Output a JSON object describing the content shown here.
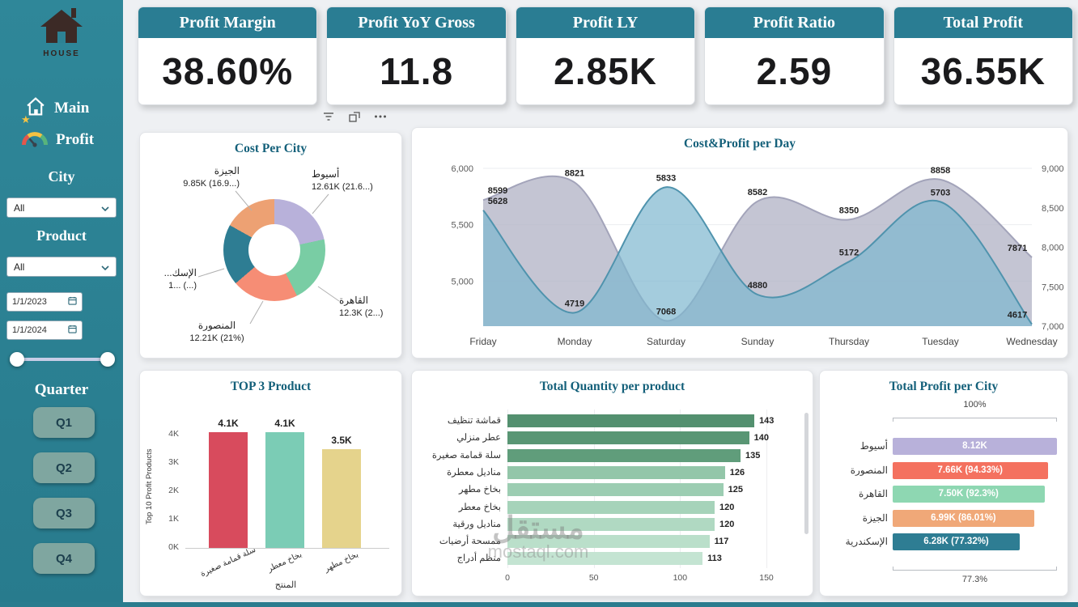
{
  "sidebar": {
    "brand": "HOUSE",
    "nav": [
      {
        "label": "Main",
        "icon": "home-icon"
      },
      {
        "label": "Profit",
        "icon": "gauge-icon"
      }
    ],
    "filters": {
      "city_label": "City",
      "city_value": "All",
      "product_label": "Product",
      "product_value": "All",
      "dropdown_icon": "chevron-down-icon",
      "date_icon": "calendar-icon",
      "date_from": "1/1/2023",
      "date_to": "1/1/2024",
      "quarter_label": "Quarter",
      "quarters": [
        "Q1",
        "Q2",
        "Q3",
        "Q4"
      ]
    }
  },
  "kpis": [
    {
      "title": "Profit Margin",
      "value": "38.60%"
    },
    {
      "title": "Profit YoY Gross",
      "value": "11.8"
    },
    {
      "title": "Profit LY",
      "value": "2.85K"
    },
    {
      "title": "Profit Ratio",
      "value": "2.59"
    },
    {
      "title": "Total Profit",
      "value": "36.55K"
    }
  ],
  "toolbar": {
    "icons": [
      "filter-icon",
      "focus-mode-icon",
      "more-options-icon"
    ]
  },
  "watermark": {
    "line1": "مستقل",
    "line2": "mostaql.com"
  },
  "colors": {
    "sidebar": "#2d8294",
    "kpi_header": "#2a7d93",
    "title_text": "#14607a"
  },
  "chart_data": [
    {
      "type": "pie",
      "title": "Cost Per City",
      "donut": true,
      "slices": [
        {
          "label": "أسيوط",
          "display_label": "أسيوط",
          "value_text": "12.61K (21.6...)",
          "pct": 21.6,
          "color": "#b8b1da"
        },
        {
          "label": "القاهرة",
          "display_label": "القاهرة",
          "value_text": "12.3K (2...)",
          "pct": 21.1,
          "color": "#79cda4"
        },
        {
          "label": "المنصورة",
          "display_label": "المنصورة",
          "value_text": "12.21K (21%)",
          "pct": 21.0,
          "color": "#f68d75"
        },
        {
          "label": "الإسكندرية",
          "display_label": "الإسك...",
          "value_text": "1... (...)",
          "pct": 19.4,
          "color": "#2e7d93"
        },
        {
          "label": "الجيزة",
          "display_label": "الجيزة",
          "value_text": "9.85K (16.9...)",
          "pct": 16.9,
          "color": "#eda173"
        }
      ]
    },
    {
      "type": "area",
      "title": "Cost&Profit per Day",
      "categories": [
        "Friday",
        "Monday",
        "Saturday",
        "Sunday",
        "Thursday",
        "Tuesday",
        "Wednesday"
      ],
      "series": [
        {
          "name": "cost",
          "axis": "right",
          "values": [
            8599,
            8821,
            7068,
            8582,
            8350,
            8858,
            7871
          ],
          "fill": "rgba(176,177,196,0.75)",
          "stroke": "#a3a4ba"
        },
        {
          "name": "profit",
          "axis": "left",
          "values": [
            5628,
            4719,
            5833,
            4880,
            5172,
            5703,
            4617
          ],
          "fill": "rgba(125,182,207,0.70)",
          "stroke": "#4f93ad"
        }
      ],
      "left_axis": {
        "min": 4600,
        "max": 6000,
        "ticks": [
          "6,000",
          "5,500",
          "5,000"
        ],
        "tick_values": [
          6000,
          5500,
          5000
        ]
      },
      "right_axis": {
        "min": 7000,
        "max": 9000,
        "ticks": [
          "9,000",
          "8,500",
          "8,000",
          "7,500",
          "7,000"
        ],
        "tick_values": [
          9000,
          8500,
          8000,
          7500,
          7000
        ]
      },
      "legend": "off",
      "grid": "light-horizontal"
    },
    {
      "type": "bar",
      "title": "TOP 3 Product",
      "ylabel": "Top 10 Profit Products",
      "xlabel": "المنتج",
      "categories": [
        "سلة قمامة صغيرة",
        "بخاخ معطر",
        "بخاخ مطهر"
      ],
      "values": [
        4100,
        4100,
        3500
      ],
      "value_labels": [
        "4.1K",
        "4.1K",
        "3.5K"
      ],
      "colors": [
        "#d84b5d",
        "#7bccb5",
        "#e5d38c"
      ],
      "yticks": [
        "0K",
        "1K",
        "2K",
        "3K",
        "4K"
      ],
      "ytick_values": [
        0,
        1000,
        2000,
        3000,
        4000
      ],
      "ylim": [
        0,
        4300
      ]
    },
    {
      "type": "bar",
      "orientation": "horizontal",
      "title": "Total Quantity per product",
      "categories": [
        "قماشة تنظيف",
        "عطر منزلي",
        "سلة قمامة صغيرة",
        "مناديل معطرة",
        "بخاخ مطهر",
        "بخاخ معطر",
        "مناديل ورقية",
        "ممسحة أرضيات",
        "منظم أدراج"
      ],
      "values": [
        143,
        140,
        135,
        126,
        125,
        120,
        120,
        117,
        113
      ],
      "colors": [
        "#53906f",
        "#599674",
        "#609d7b",
        "#93c6a9",
        "#9ccdb2",
        "#a6d3ba",
        "#b0d9c2",
        "#badfca",
        "#c4e4d2"
      ],
      "xticks": [
        "0",
        "50",
        "100",
        "150"
      ],
      "xtick_values": [
        0,
        50,
        100,
        150
      ],
      "xlim": [
        0,
        155
      ]
    },
    {
      "type": "bar",
      "orientation": "horizontal",
      "title": "Total Profit per City",
      "categories": [
        "أسيوط",
        "المنصورة",
        "القاهرة",
        "الجيزة",
        "الإسكندرية"
      ],
      "values": [
        8.12,
        7.66,
        7.5,
        6.99,
        6.28
      ],
      "bar_labels": [
        "8.12K",
        "7.66K (94.33%)",
        "7.50K (92.3%)",
        "6.99K (86.01%)",
        "6.28K (77.32%)"
      ],
      "colors": [
        "#b8b1da",
        "#f4715f",
        "#8ed7b2",
        "#f0a878",
        "#2e7d93"
      ],
      "axis_top_label": "100%",
      "axis_bottom_label": "77.3%"
    }
  ]
}
